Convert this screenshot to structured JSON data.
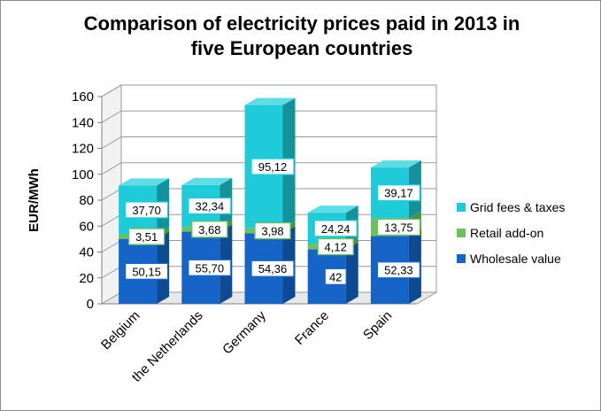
{
  "chart_data": {
    "type": "bar",
    "stacked": true,
    "title_lines": [
      "Comparison of electricity prices paid in 2013 in",
      "five European countries"
    ],
    "ylabel": "EUR/MWh",
    "xlabel": "",
    "ylim": [
      0,
      160
    ],
    "yticks": [
      "0",
      "20",
      "40",
      "60",
      "80",
      "100",
      "120",
      "140",
      "160"
    ],
    "grid": true,
    "legend_position": "right",
    "categories": [
      "Belgium",
      "the Netherlands",
      "Germany",
      "France",
      "Spain"
    ],
    "series": [
      {
        "name": "Wholesale value",
        "values": [
          50.15,
          55.7,
          54.36,
          42,
          52.33
        ],
        "labels": [
          "50,15",
          "55,70",
          "54,36",
          "42",
          "52,33"
        ],
        "color": "#1565c8",
        "color_dark": "#0d4a94",
        "color_top": "#3f88dc"
      },
      {
        "name": "Retail add-on",
        "values": [
          3.51,
          3.68,
          3.98,
          4.12,
          13.75
        ],
        "labels": [
          "3,51",
          "3,68",
          "3,98",
          "4,12",
          "13,75"
        ],
        "color": "#6cc25c",
        "color_dark": "#4a9440",
        "color_top": "#8ed47f"
      },
      {
        "name": "Grid fees & taxes",
        "values": [
          37.7,
          32.34,
          95.12,
          24.24,
          39.17
        ],
        "labels": [
          "37,70",
          "32,34",
          "95,12",
          "24,24",
          "39,17"
        ],
        "color": "#1ecbd8",
        "color_dark": "#13929c",
        "color_top": "#5fdde6"
      }
    ],
    "legend_order": [
      "Grid fees & taxes",
      "Retail add-on",
      "Wholesale value"
    ]
  }
}
